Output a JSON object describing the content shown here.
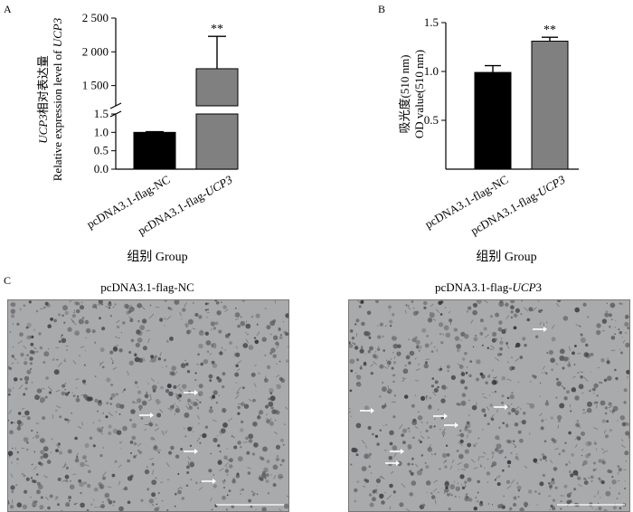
{
  "panel_labels": [
    "A",
    "B",
    "C"
  ],
  "xlabel": "组别 Group",
  "categories": [
    "pcDNA3.1-flag-NC",
    "pcDNA3.1-flag-UCP3"
  ],
  "category_parts": [
    {
      "prefix": "pcDNA3.1-flag-NC",
      "italic": "",
      "suffix": ""
    },
    {
      "prefix": "pcDNA3.1-flag-",
      "italic": "UCP3",
      "suffix": ""
    }
  ],
  "micro_titles": [
    {
      "prefix": "pcDNA3.1-flag-NC",
      "italic": "",
      "suffix": ""
    },
    {
      "prefix": "pcDNA3.1-flag-",
      "italic": "UCP",
      "suffix": "3"
    }
  ],
  "colors": {
    "nc_bar": "#000000",
    "ucp3_bar": "#808080",
    "micro_bg": "#a9aaab",
    "arrow": "#ffffff"
  },
  "chart_data": [
    {
      "type": "bar",
      "panel": "A",
      "categories": [
        "pcDNA3.1-flag-NC",
        "pcDNA3.1-flag-UCP3"
      ],
      "values": [
        1.0,
        1750
      ],
      "errors": [
        0.02,
        480
      ],
      "significance": [
        "",
        "**"
      ],
      "ylabel_line1": {
        "italic": "UCP3",
        "rest": "相对表达量"
      },
      "ylabel_line2": {
        "rest": "Relative expression level of ",
        "italic": "UCP3"
      },
      "xlabel": "组别 Group",
      "axis_break": true,
      "lower_range": [
        0,
        1.5
      ],
      "lower_ticks": [
        "0.0",
        "0.5",
        "1.0",
        "1.5"
      ],
      "upper_range": [
        1200,
        2500
      ],
      "upper_ticks": [
        "1 500",
        "2 000",
        "2 500"
      ],
      "grid": false
    },
    {
      "type": "bar",
      "panel": "B",
      "categories": [
        "pcDNA3.1-flag-NC",
        "pcDNA3.1-flag-UCP3"
      ],
      "values": [
        0.99,
        1.31
      ],
      "errors": [
        0.07,
        0.04
      ],
      "significance": [
        "",
        "**"
      ],
      "ylabel_line1": "吸光度(510 nm)",
      "ylabel_line2": "OD value(510 nm)",
      "xlabel": "组别 Group",
      "ylim": [
        0,
        1.5
      ],
      "ticks": [
        "0.5",
        "1.0",
        "1.5"
      ],
      "grid": false
    }
  ]
}
